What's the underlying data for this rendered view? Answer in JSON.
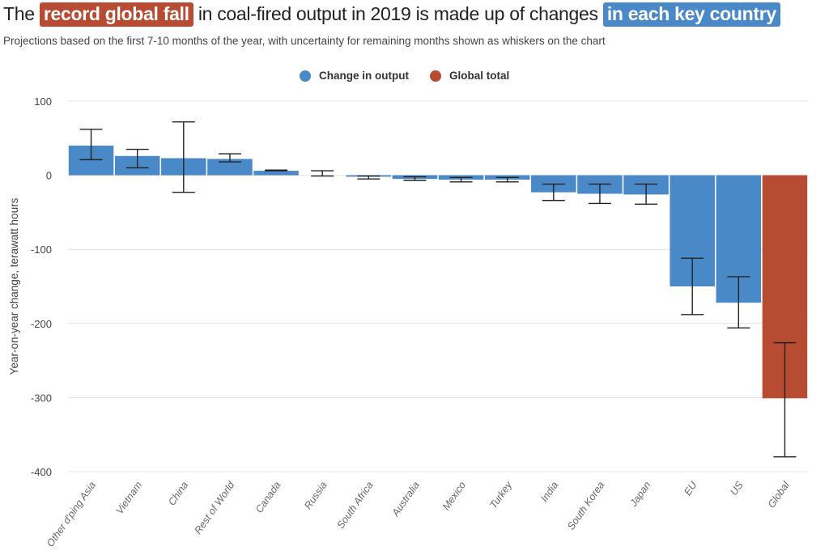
{
  "header": {
    "title_pre": "The",
    "title_hl1": "record global fall",
    "title_mid": "in coal-fired output in 2019 is made up of changes",
    "title_hl2": "in each key country",
    "subtitle": "Projections based on the first 7-10 months of the year, with uncertainty for remaining months shown as whiskers on the chart"
  },
  "chart_data": {
    "type": "bar",
    "ylabel": "Year-on-year change, terawatt hours",
    "ylim": [
      -400,
      100
    ],
    "yticks": [
      100,
      0,
      -100,
      -200,
      -300,
      -400
    ],
    "grid": true,
    "legend_position": "top-center",
    "legend": [
      {
        "name": "Change in output",
        "color": "#4a89c8"
      },
      {
        "name": "Global total",
        "color": "#b84c32"
      }
    ],
    "categories": [
      "Other d'ping Asia",
      "Vietnam",
      "China",
      "Rest of World",
      "Canada",
      "Russia",
      "South Africa",
      "Australia",
      "Mexico",
      "Turkey",
      "India",
      "South Korea",
      "Japan",
      "EU",
      "US",
      "Global"
    ],
    "values": [
      40,
      26,
      23,
      22,
      6,
      0,
      -2,
      -5,
      -6,
      -6,
      -23,
      -25,
      -26,
      -150,
      -172,
      -301
    ],
    "error_low": [
      21,
      10,
      -23,
      18,
      6,
      -1,
      -5,
      -7,
      -9,
      -9,
      -34,
      -38,
      -39,
      -188,
      -206,
      -380
    ],
    "error_high": [
      62,
      35,
      72,
      29,
      7,
      6,
      -1,
      -2,
      -3,
      -3,
      -12,
      -12,
      -12,
      -112,
      -137,
      -226
    ],
    "series_of_bar": [
      "Change in output",
      "Change in output",
      "Change in output",
      "Change in output",
      "Change in output",
      "Change in output",
      "Change in output",
      "Change in output",
      "Change in output",
      "Change in output",
      "Change in output",
      "Change in output",
      "Change in output",
      "Change in output",
      "Change in output",
      "Global total"
    ]
  }
}
